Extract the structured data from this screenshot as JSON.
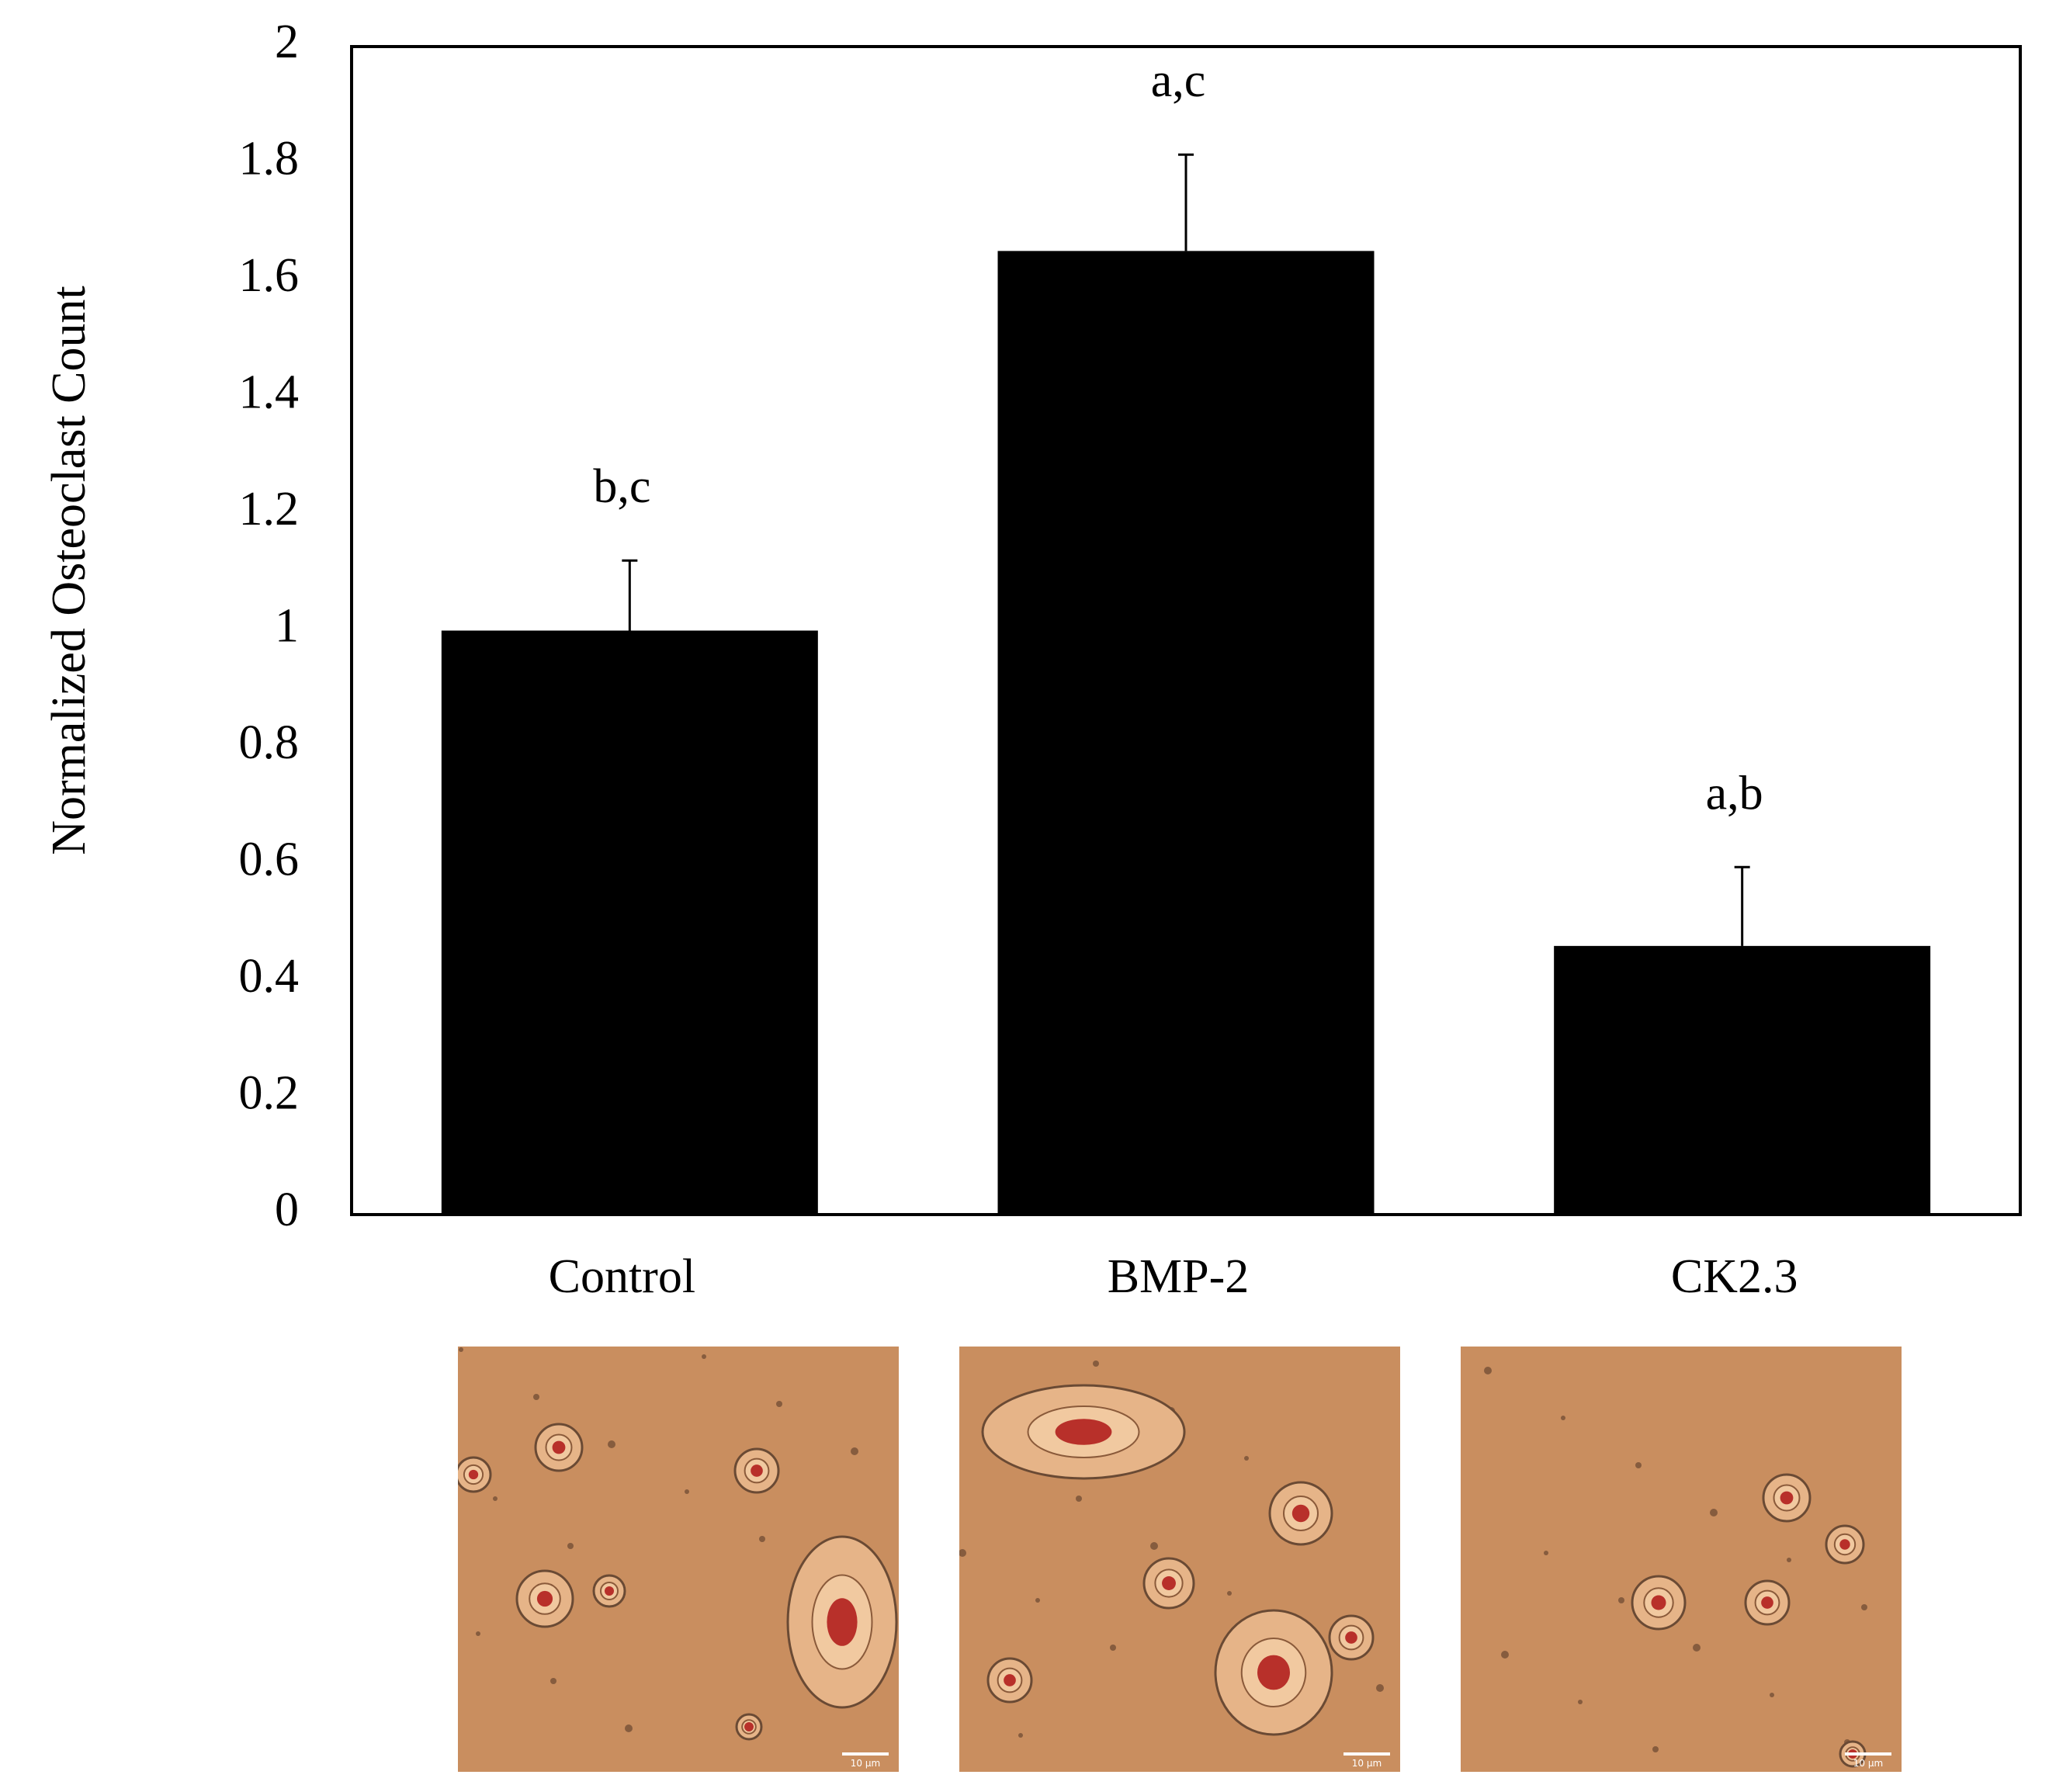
{
  "chart_data": {
    "type": "bar",
    "categories": [
      "Control",
      "BMP-2",
      "CK2.3"
    ],
    "values": [
      1.0,
      1.65,
      0.46
    ],
    "errors": [
      0.12,
      0.165,
      0.135
    ],
    "annotations": [
      "b,c",
      "a,c",
      "a,b"
    ],
    "ylabel": "Normalized Osteoclast Count",
    "xlabel": "",
    "ylim": [
      0,
      2
    ],
    "yticks": [
      "0",
      "0.2",
      "0.4",
      "0.6",
      "0.8",
      "1",
      "1.2",
      "1.4",
      "1.6",
      "1.8",
      "2"
    ],
    "bar_color": "#000000",
    "grid": false,
    "legend": "none"
  },
  "micrographs": {
    "panels": [
      {
        "group": "Control",
        "scale_bar": "10 µm"
      },
      {
        "group": "BMP-2",
        "scale_bar": "10 µm"
      },
      {
        "group": "CK2.3",
        "scale_bar": "10 µm"
      }
    ],
    "background_color": "#c98e5f",
    "stain_color": "#b8302a"
  }
}
